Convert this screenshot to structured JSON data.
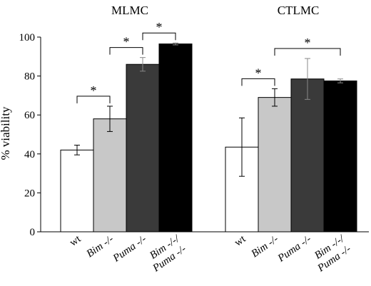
{
  "chart_data": {
    "type": "bar",
    "ylabel": "% viability",
    "ylim": [
      0,
      100
    ],
    "yticks": [
      "0",
      "20",
      "40",
      "60",
      "80",
      "100"
    ],
    "grid": false,
    "legend": "none",
    "categories": [
      "wt",
      "Bim -/-",
      "Puma -/-",
      "Bim -/-/ Puma -/-"
    ],
    "category_label_lines": [
      [
        "wt"
      ],
      [
        "Bim -/-"
      ],
      [
        "Puma -/-"
      ],
      [
        "Bim -/-/",
        "Puma -/-"
      ]
    ],
    "bar_colors": [
      "#ffffff",
      "#c8c8c8",
      "#3a3a3a",
      "#000000"
    ],
    "significance_mark": "*",
    "panels": [
      {
        "title": "MLMC",
        "values": [
          42,
          58,
          86,
          96.5
        ],
        "errors": [
          2.5,
          6.5,
          3.5,
          0.5
        ],
        "brackets": [
          [
            0,
            1
          ],
          [
            1,
            2
          ],
          [
            2,
            3
          ]
        ]
      },
      {
        "title": "CTLMC",
        "values": [
          43.5,
          69,
          78.5,
          77.5
        ],
        "errors": [
          15,
          4.5,
          10.5,
          1
        ],
        "brackets": [
          [
            0,
            1
          ],
          [
            1,
            3
          ]
        ]
      }
    ]
  }
}
